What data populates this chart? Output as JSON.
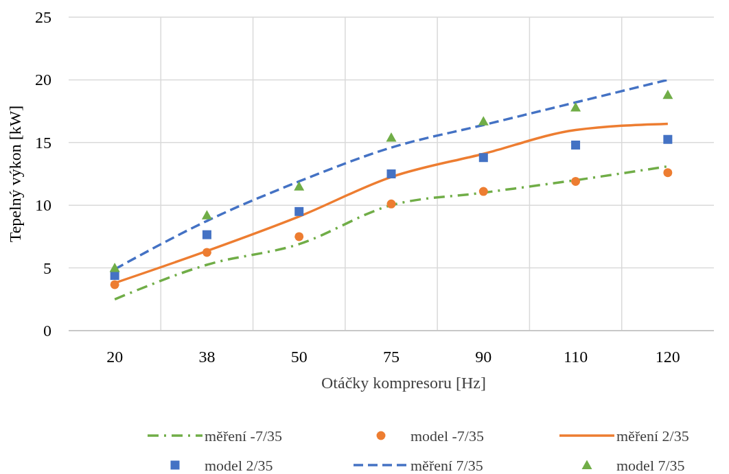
{
  "chart_data": {
    "type": "line",
    "xlabel": "Otáčky kompresoru [Hz]",
    "ylabel": "Tepelný výkon [kW]",
    "categories": [
      "20",
      "38",
      "50",
      "75",
      "90",
      "110",
      "120"
    ],
    "ylim": [
      0,
      25
    ],
    "yticks": [
      0,
      5,
      10,
      15,
      20,
      25
    ],
    "grid": true,
    "legend": "bottom",
    "series": [
      {
        "name": "měření -7/35",
        "type": "line",
        "color": "#70ad47",
        "line_style": "dashdot",
        "marker": "none",
        "values": [
          2.5,
          5.25,
          6.9,
          10.0,
          11.0,
          12.0,
          13.1
        ]
      },
      {
        "name": "model -7/35",
        "type": "scatter",
        "color": "#ed7d31",
        "marker": "circle",
        "values": [
          3.67,
          6.24,
          7.5,
          10.1,
          11.1,
          11.9,
          12.6
        ]
      },
      {
        "name": "měření 2/35",
        "type": "line",
        "color": "#ed7d31",
        "line_style": "solid",
        "marker": "none",
        "values": [
          3.8,
          6.35,
          9.1,
          12.25,
          14.1,
          16.0,
          16.5
        ]
      },
      {
        "name": "model 2/35",
        "type": "scatter",
        "color": "#4472c4",
        "marker": "square",
        "values": [
          4.4,
          7.65,
          9.5,
          12.5,
          13.8,
          14.8,
          15.25
        ]
      },
      {
        "name": "měření 7/35",
        "type": "line",
        "color": "#4472c4",
        "line_style": "dashed",
        "marker": "none",
        "values": [
          4.9,
          8.75,
          11.9,
          14.6,
          16.4,
          18.2,
          20.0
        ]
      },
      {
        "name": "model 7/35",
        "type": "scatter",
        "color": "#70ad47",
        "marker": "triangle",
        "values": [
          5.0,
          9.2,
          11.5,
          15.4,
          16.7,
          17.8,
          18.8
        ]
      }
    ]
  }
}
